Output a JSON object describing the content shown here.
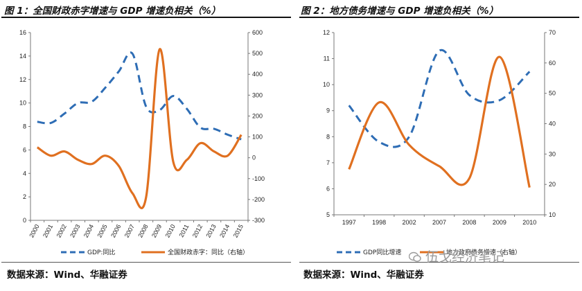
{
  "chart_data": [
    {
      "type": "line",
      "title": "图 1：全国财政赤字增速与 GDP 增速负相关（%）",
      "categories": [
        "2000",
        "2001",
        "2002",
        "2003",
        "2004",
        "2005",
        "2006",
        "2007",
        "2008",
        "2009",
        "2010",
        "2011",
        "2012",
        "2013",
        "2014",
        "2015"
      ],
      "y_left": {
        "range": [
          0,
          16
        ],
        "ticks": [
          "0",
          "2",
          "4",
          "6",
          "8",
          "10",
          "12",
          "14",
          "16"
        ]
      },
      "y_right": {
        "range": [
          -300,
          600
        ],
        "ticks": [
          "-300",
          "-200",
          "-100",
          "0",
          "100",
          "200",
          "300",
          "400",
          "500",
          "600"
        ]
      },
      "series": [
        {
          "name": "GDP:同比",
          "axis": "left",
          "style": "dashed",
          "color": "#2e6db5",
          "values": [
            8.4,
            8.3,
            9.1,
            10.0,
            10.1,
            11.3,
            12.7,
            14.2,
            9.7,
            9.4,
            10.6,
            9.5,
            7.9,
            7.8,
            7.3,
            6.9
          ]
        },
        {
          "name": "全国财政赤字：同比（右轴）",
          "axis": "right",
          "style": "solid",
          "color": "#e07020",
          "values": [
            50,
            10,
            30,
            -10,
            -30,
            10,
            -40,
            -170,
            -190,
            520,
            -20,
            -10,
            70,
            30,
            10,
            110
          ]
        }
      ]
    },
    {
      "type": "line",
      "title": "图 2：地方债务增速与 GDP 增速负相关（%）",
      "categories": [
        "1997",
        "1998",
        "2002",
        "2007",
        "2008",
        "2009",
        "2010"
      ],
      "y_left": {
        "range": [
          5,
          12
        ],
        "ticks": [
          "5",
          "6",
          "7",
          "8",
          "9",
          "10",
          "11",
          "12"
        ]
      },
      "y_right": {
        "range": [
          10,
          70
        ],
        "ticks": [
          "10",
          "20",
          "30",
          "40",
          "50",
          "60",
          "70"
        ]
      },
      "series": [
        {
          "name": "GDP同比增速",
          "axis": "left",
          "style": "dashed",
          "color": "#2e6db5",
          "values": [
            9.2,
            7.8,
            8.0,
            11.3,
            9.6,
            9.4,
            10.5
          ]
        },
        {
          "name": "地方政府债务增速（右轴）",
          "axis": "right",
          "style": "solid",
          "color": "#e07020",
          "values": [
            25,
            47,
            33,
            26,
            22,
            62,
            19
          ]
        }
      ]
    }
  ],
  "sources": [
    "数据来源：Wind、华融证券",
    "数据来源：Wind、华融证券"
  ],
  "watermark": "伍戈经济笔记"
}
